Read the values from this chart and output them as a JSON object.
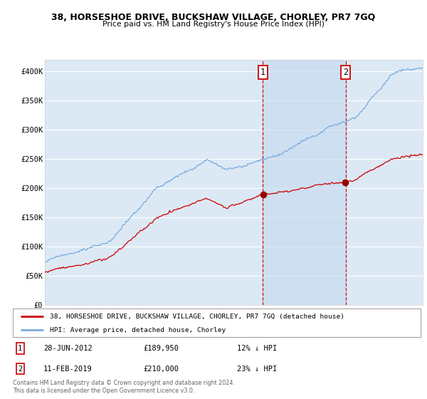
{
  "title": "38, HORSESHOE DRIVE, BUCKSHAW VILLAGE, CHORLEY, PR7 7GQ",
  "subtitle": "Price paid vs. HM Land Registry's House Price Index (HPI)",
  "ylabel_ticks": [
    "£0",
    "£50K",
    "£100K",
    "£150K",
    "£200K",
    "£250K",
    "£300K",
    "£350K",
    "£400K"
  ],
  "ytick_values": [
    0,
    50000,
    100000,
    150000,
    200000,
    250000,
    300000,
    350000,
    400000
  ],
  "ylim": [
    0,
    420000
  ],
  "xlim_start": 1995.5,
  "xlim_end": 2025.3,
  "background_color": "#dce9f5",
  "grid_color": "#ffffff",
  "shade_color": "#c8dcf0",
  "sale1_x": 2012.487,
  "sale1_y": 189950,
  "sale2_x": 2019.11,
  "sale2_y": 210000,
  "sale1_label": "1",
  "sale2_label": "2",
  "sale1_date": "28-JUN-2012",
  "sale1_price": "£189,950",
  "sale1_hpi": "12% ↓ HPI",
  "sale2_date": "11-FEB-2019",
  "sale2_price": "£210,000",
  "sale2_hpi": "23% ↓ HPI",
  "line_color_property": "#cc0000",
  "line_color_hpi": "#7aaadd",
  "vline_color": "#cc0000",
  "marker_color_property": "#990000",
  "footnote": "Contains HM Land Registry data © Crown copyright and database right 2024.\nThis data is licensed under the Open Government Licence v3.0.",
  "legend_property": "38, HORSESHOE DRIVE, BUCKSHAW VILLAGE, CHORLEY, PR7 7GQ (detached house)",
  "legend_hpi": "HPI: Average price, detached house, Chorley"
}
